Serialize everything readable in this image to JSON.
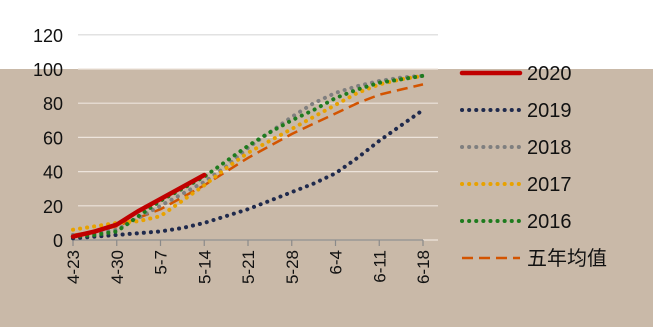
{
  "colors": {
    "page_bg": "#ffffff",
    "plot_bg": "#c9b9a8",
    "grid": "#ede4dc",
    "axis_text": "#111111"
  },
  "chart_data": {
    "type": "line",
    "title": "",
    "xlabel": "",
    "ylabel": "",
    "ylim": [
      0,
      120
    ],
    "y_ticks": [
      0,
      20,
      40,
      60,
      80,
      100,
      120
    ],
    "x_ticks": [
      "4-23",
      "4-30",
      "5-7",
      "5-14",
      "5-21",
      "5-28",
      "6-4",
      "6-11",
      "6-18"
    ],
    "x_index": [
      0,
      1,
      2,
      3,
      4,
      5,
      6,
      7,
      8
    ],
    "grid": true,
    "legend_position": "right",
    "series": [
      {
        "name": "2020",
        "style": "solid-thick",
        "color": "#c00000",
        "x": [
          0,
          0.5,
          1,
          1.5,
          2,
          2.5,
          3
        ],
        "y": [
          2,
          5,
          9,
          17,
          24,
          31,
          38
        ]
      },
      {
        "name": "2019",
        "style": "dots",
        "color": "#1f2a4d",
        "x": [
          0,
          0.5,
          1,
          1.5,
          2,
          2.5,
          3,
          3.5,
          4,
          4.5,
          5,
          5.5,
          6,
          6.5,
          7,
          7.5,
          8
        ],
        "y": [
          1,
          2,
          3,
          4,
          5,
          7,
          10,
          14,
          18,
          23,
          28,
          33,
          39,
          48,
          58,
          67,
          76
        ]
      },
      {
        "name": "2018",
        "style": "dots",
        "color": "#7f7f7f",
        "x": [
          0,
          0.5,
          1,
          1.5,
          2,
          2.5,
          3,
          3.5,
          4,
          4.5,
          5,
          5.5,
          6,
          6.5,
          7,
          7.5,
          8
        ],
        "y": [
          3,
          4,
          6,
          13,
          20,
          27,
          34,
          43,
          54,
          63,
          72,
          80,
          86,
          90,
          93,
          95,
          96
        ]
      },
      {
        "name": "2017",
        "style": "dots",
        "color": "#e8a200",
        "x": [
          0,
          0.5,
          1,
          1.5,
          2,
          2.5,
          3,
          3.5,
          4,
          4.5,
          5,
          5.5,
          6,
          6.5,
          7,
          7.5,
          8
        ],
        "y": [
          6,
          8,
          10,
          11,
          14,
          23,
          32,
          42,
          51,
          58,
          65,
          72,
          79,
          86,
          91,
          94,
          96
        ]
      },
      {
        "name": "2016",
        "style": "dots",
        "color": "#1e7b1e",
        "x": [
          0,
          0.5,
          1,
          1.5,
          2,
          2.5,
          3,
          3.5,
          4,
          4.5,
          5,
          5.5,
          6,
          6.5,
          7,
          7.5,
          8
        ],
        "y": [
          2,
          3,
          5,
          14,
          23,
          30,
          37,
          46,
          55,
          63,
          70,
          76,
          83,
          88,
          92,
          94,
          96
        ]
      },
      {
        "name": "五年均值",
        "style": "dashed",
        "color": "#d35400",
        "x": [
          0,
          0.5,
          1,
          1.5,
          2,
          2.5,
          3,
          3.5,
          4,
          4.5,
          5,
          5.5,
          6,
          6.5,
          7,
          7.5,
          8
        ],
        "y": [
          3,
          5,
          8,
          13,
          18,
          25,
          32,
          40,
          48,
          55,
          62,
          68,
          74,
          80,
          85,
          88,
          91
        ]
      }
    ]
  }
}
